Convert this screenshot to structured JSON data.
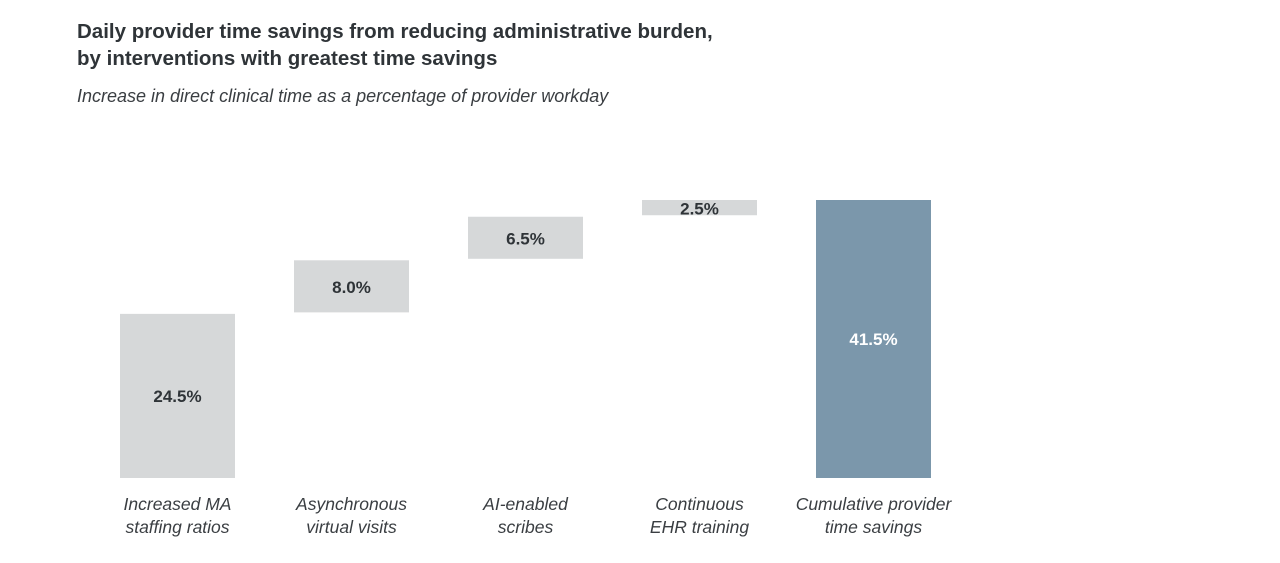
{
  "chart_data": {
    "type": "waterfall",
    "title_line1": "Daily provider time savings from reducing administrative burden,",
    "title_line2": "by interventions with greatest time savings",
    "subtitle": "Increase in direct clinical time as a percentage of provider workday",
    "categories": [
      [
        "Increased MA",
        "staffing ratios"
      ],
      [
        "Asynchronous",
        "virtual visits"
      ],
      [
        "AI-enabled",
        "scribes"
      ],
      [
        "Continuous",
        "EHR training"
      ],
      [
        "Cumulative provider",
        "time savings"
      ]
    ],
    "values": [
      24.5,
      8.0,
      6.5,
      2.5,
      41.5
    ],
    "value_labels": [
      "24.5%",
      "8.0%",
      "6.5%",
      "2.5%",
      "41.5%"
    ],
    "is_total": [
      false,
      false,
      false,
      false,
      true
    ],
    "ylim": [
      0,
      41.5
    ],
    "grid": false,
    "colors": {
      "step": "#d6d8d9",
      "total": "#7b97ab",
      "step_label": "#2f3438",
      "total_label": "#ffffff",
      "category_label": "#3a3e42"
    }
  }
}
